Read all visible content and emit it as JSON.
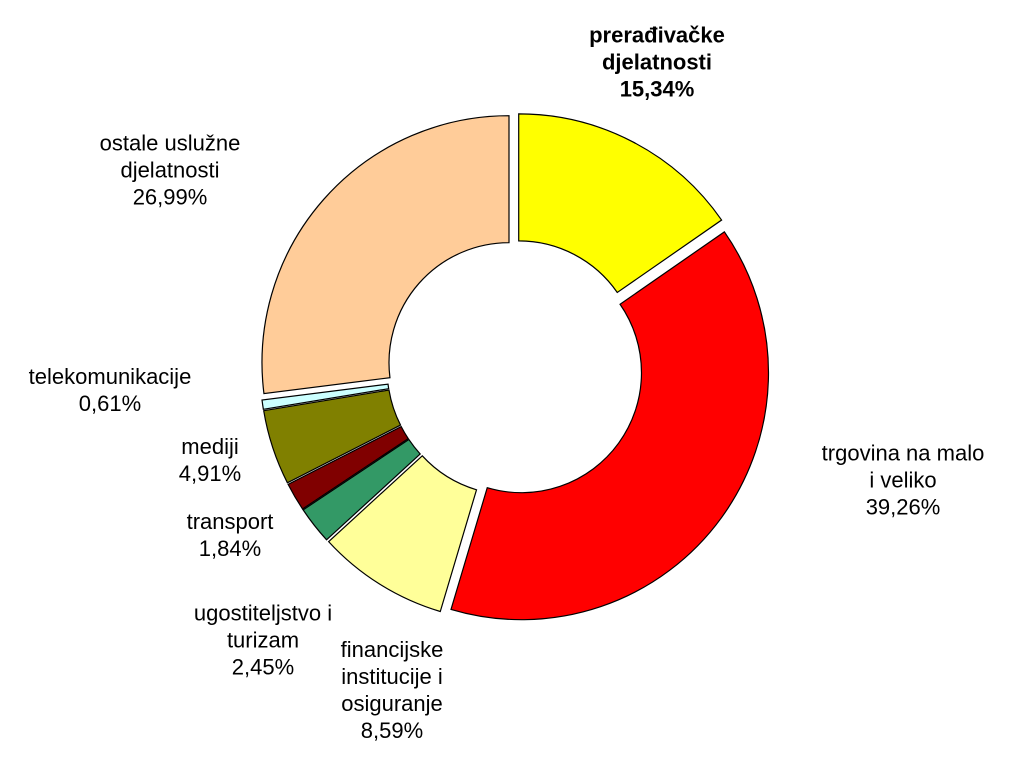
{
  "chart_data": {
    "type": "donut",
    "categories": [
      "prerađivačke djelatnosti",
      "trgovina na malo i veliko",
      "financijske institucije i osiguranje",
      "ugostiteljstvo i turizam",
      "transport",
      "mediji",
      "telekomunikacije",
      "ostale uslužne djelatnosti"
    ],
    "values": [
      15.34,
      39.26,
      8.59,
      2.45,
      1.84,
      4.91,
      0.61,
      26.99
    ],
    "value_labels": [
      "15,34%",
      "39,26%",
      "8,59%",
      "2,45%",
      "1,84%",
      "4,91%",
      "0,61%",
      "26,99%"
    ],
    "colors": [
      "#ffff00",
      "#ff0000",
      "#ffff99",
      "#339966",
      "#800000",
      "#808000",
      "#ccffff",
      "#ffcc99"
    ]
  }
}
